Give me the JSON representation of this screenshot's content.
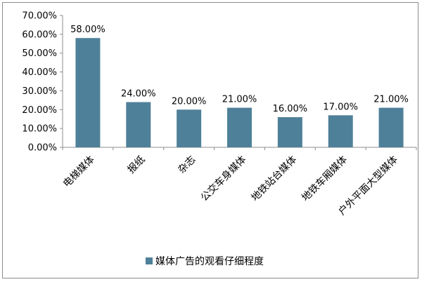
{
  "chart_data": {
    "type": "bar",
    "categories": [
      "电梯媒体",
      "报纸",
      "杂志",
      "公交车身媒体",
      "地铁站台媒体",
      "地铁车厢媒体",
      "户外平面大型媒体"
    ],
    "series": [
      {
        "name": "媒体广告的观看仔细程度",
        "values": [
          58.0,
          24.0,
          20.0,
          21.0,
          16.0,
          17.0,
          21.0
        ]
      }
    ],
    "data_labels": [
      "58.00%",
      "24.00%",
      "20.00%",
      "21.00%",
      "16.00%",
      "17.00%",
      "21.00%"
    ],
    "y_ticks": [
      "0.00%",
      "10.00%",
      "20.00%",
      "30.00%",
      "40.00%",
      "50.00%",
      "60.00%",
      "70.00%"
    ],
    "ylim": [
      0,
      70
    ],
    "grid": false,
    "legend_position": "bottom",
    "colors": {
      "bar": "#4f8099",
      "axis": "#8c8c8c"
    }
  }
}
